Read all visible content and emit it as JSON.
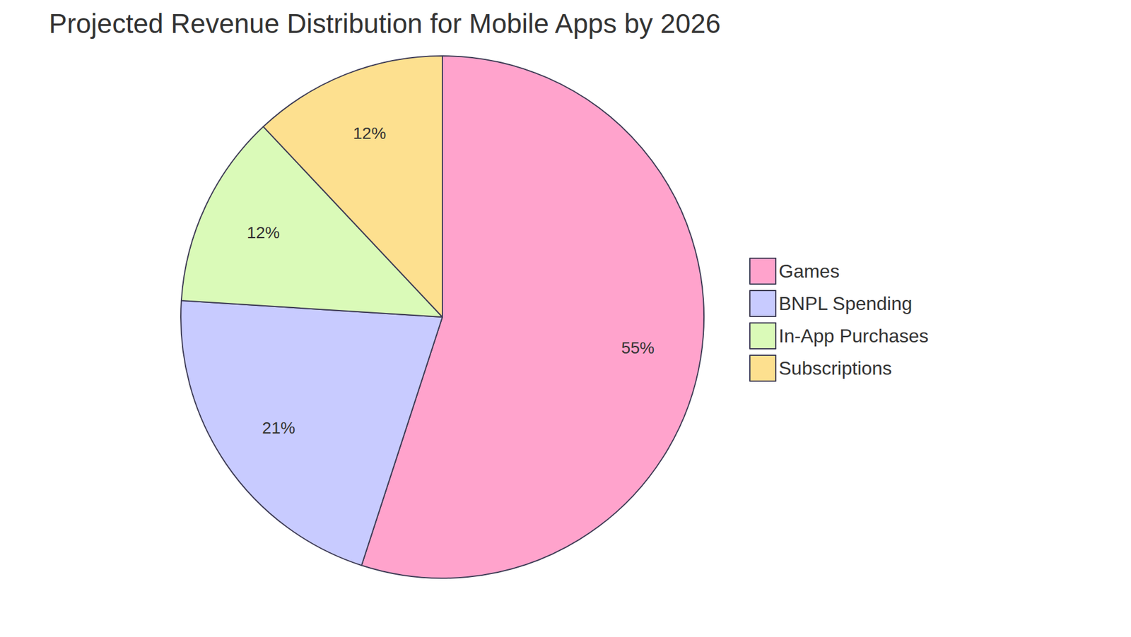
{
  "chart_data": {
    "type": "pie",
    "title": "Projected Revenue Distribution for Mobile Apps by 2026",
    "categories": [
      "Games",
      "BNPL Spending",
      "In-App Purchases",
      "Subscriptions"
    ],
    "values": [
      55,
      21,
      12,
      12
    ],
    "value_labels": [
      "55%",
      "21%",
      "12%",
      "12%"
    ],
    "colors": [
      "#ffa3cc",
      "#c8cbff",
      "#dafab8",
      "#fde08f"
    ],
    "data_labels": true,
    "legend": "right"
  }
}
